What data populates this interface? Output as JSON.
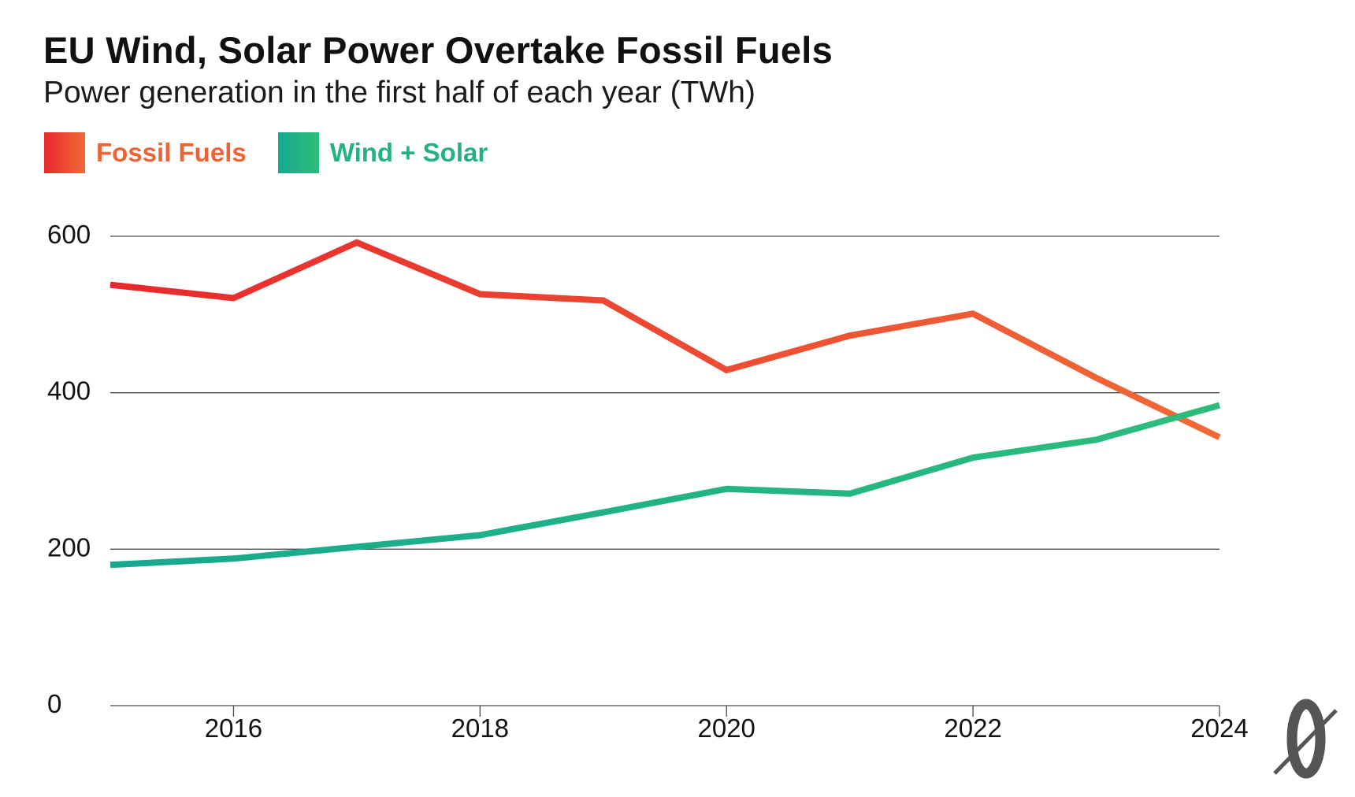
{
  "header": {
    "title": "EU Wind, Solar Power Overtake Fossil Fuels",
    "subtitle": "Power generation in the first half of each year (TWh)"
  },
  "chart_data": {
    "type": "line",
    "title": "EU Wind, Solar Power Overtake Fossil Fuels",
    "subtitle": "Power generation in the first half of each year (TWh)",
    "xlabel": "",
    "ylabel": "",
    "x": [
      2015,
      2016,
      2017,
      2018,
      2019,
      2020,
      2021,
      2022,
      2023,
      2024
    ],
    "xlim": [
      2015,
      2024
    ],
    "ylim": [
      0,
      600
    ],
    "x_ticks": [
      2016,
      2018,
      2020,
      2022,
      2024
    ],
    "y_ticks": [
      0,
      200,
      400,
      600
    ],
    "grid": "horizontal",
    "legend_position": "top-left",
    "series": [
      {
        "name": "Fossil Fuels",
        "color": "#ee5a33",
        "gradient": [
          "#e8282e",
          "#f06a35"
        ],
        "values": [
          538,
          521,
          592,
          526,
          518,
          429,
          473,
          501,
          419,
          343
        ]
      },
      {
        "name": "Wind + Solar",
        "color": "#22b182",
        "gradient": [
          "#16a98f",
          "#2dbd7a"
        ],
        "values": [
          180,
          188,
          203,
          218,
          247,
          277,
          271,
          317,
          340,
          384
        ]
      }
    ]
  },
  "branding": {
    "logo_icon": "publisher-logo-icon"
  }
}
